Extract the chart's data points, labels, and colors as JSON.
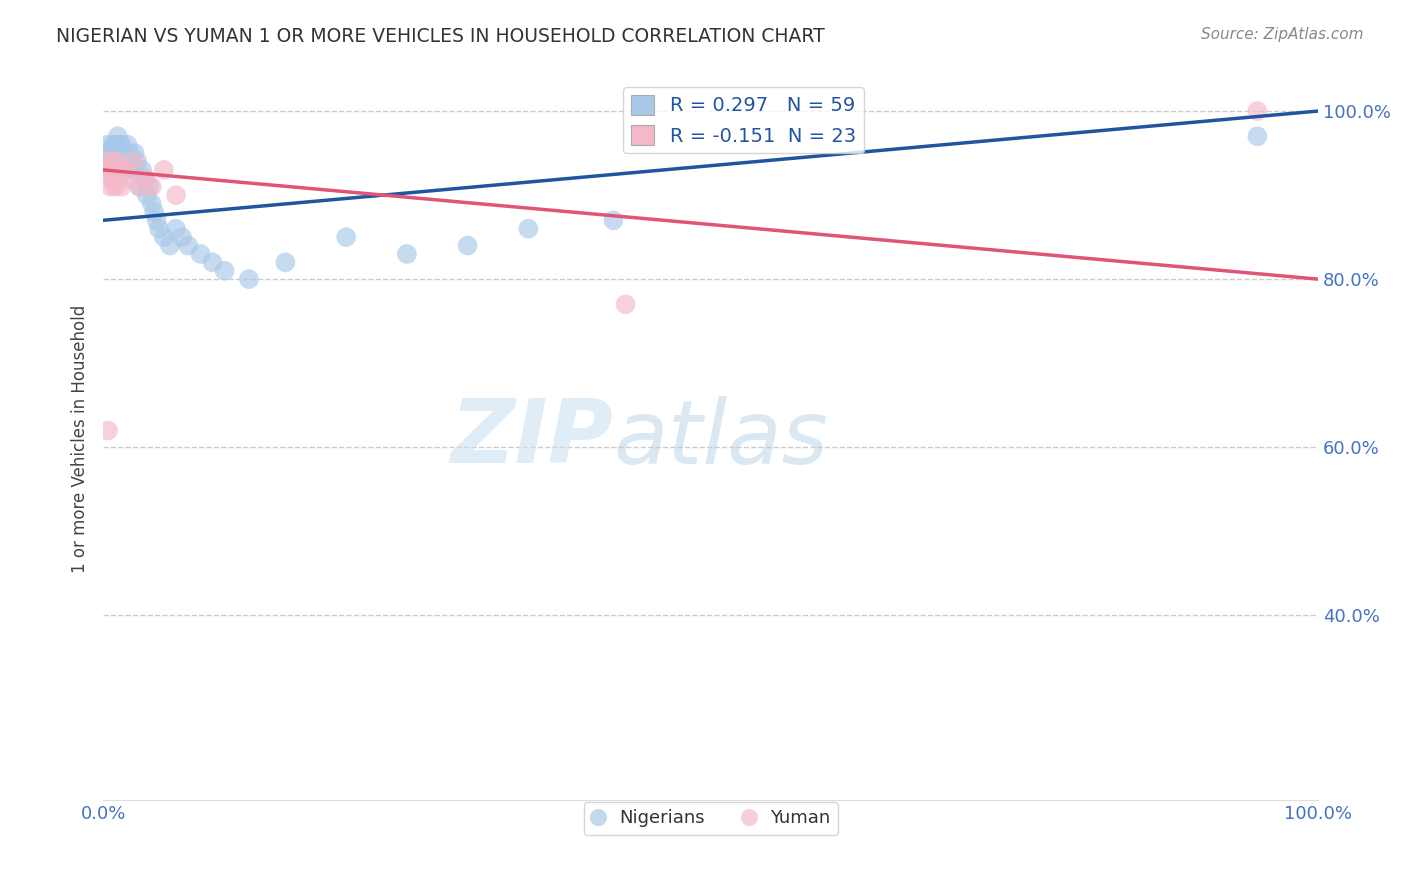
{
  "title": "NIGERIAN VS YUMAN 1 OR MORE VEHICLES IN HOUSEHOLD CORRELATION CHART",
  "source_text": "Source: ZipAtlas.com",
  "ylabel": "1 or more Vehicles in Household",
  "nigerian_R": 0.297,
  "nigerian_N": 59,
  "yuman_R": -0.151,
  "yuman_N": 23,
  "nigerian_color": "#a8c8e8",
  "yuman_color": "#f4b8c8",
  "nigerian_line_color": "#2155a0",
  "yuman_line_color": "#e05575",
  "nigerian_x": [
    0.002,
    0.003,
    0.004,
    0.005,
    0.006,
    0.007,
    0.008,
    0.008,
    0.009,
    0.009,
    0.01,
    0.01,
    0.011,
    0.011,
    0.012,
    0.012,
    0.013,
    0.013,
    0.014,
    0.014,
    0.015,
    0.015,
    0.016,
    0.016,
    0.017,
    0.018,
    0.019,
    0.02,
    0.021,
    0.022,
    0.024,
    0.025,
    0.026,
    0.028,
    0.03,
    0.032,
    0.034,
    0.036,
    0.038,
    0.04,
    0.042,
    0.044,
    0.046,
    0.05,
    0.055,
    0.06,
    0.065,
    0.07,
    0.08,
    0.09,
    0.1,
    0.12,
    0.15,
    0.2,
    0.25,
    0.3,
    0.35,
    0.42,
    0.95
  ],
  "nigerian_y": [
    0.94,
    0.96,
    0.95,
    0.93,
    0.94,
    0.95,
    0.96,
    0.94,
    0.95,
    0.93,
    0.96,
    0.95,
    0.94,
    0.96,
    0.95,
    0.97,
    0.93,
    0.95,
    0.96,
    0.94,
    0.95,
    0.96,
    0.94,
    0.95,
    0.93,
    0.95,
    0.94,
    0.96,
    0.93,
    0.95,
    0.94,
    0.93,
    0.95,
    0.94,
    0.91,
    0.93,
    0.92,
    0.9,
    0.91,
    0.89,
    0.88,
    0.87,
    0.86,
    0.85,
    0.84,
    0.86,
    0.85,
    0.84,
    0.83,
    0.82,
    0.81,
    0.8,
    0.82,
    0.85,
    0.83,
    0.84,
    0.86,
    0.87,
    0.97
  ],
  "yuman_x": [
    0.003,
    0.004,
    0.005,
    0.006,
    0.007,
    0.008,
    0.009,
    0.01,
    0.011,
    0.012,
    0.013,
    0.015,
    0.017,
    0.02,
    0.025,
    0.03,
    0.035,
    0.04,
    0.05,
    0.06,
    0.004,
    0.43,
    0.95
  ],
  "yuman_y": [
    0.93,
    0.94,
    0.92,
    0.91,
    0.93,
    0.94,
    0.92,
    0.91,
    0.93,
    0.94,
    0.92,
    0.91,
    0.93,
    0.92,
    0.94,
    0.91,
    0.92,
    0.91,
    0.93,
    0.9,
    0.62,
    0.77,
    1.0
  ],
  "nigerian_trendline": [
    0.0,
    1.0,
    0.87,
    1.0
  ],
  "yuman_trendline": [
    0.0,
    1.0,
    0.93,
    0.8
  ],
  "xlim": [
    0.0,
    1.0
  ],
  "ylim": [
    0.18,
    1.04
  ],
  "yticks": [
    0.4,
    0.6,
    0.8,
    1.0
  ],
  "ytick_labels": [
    "40.0%",
    "60.0%",
    "80.0%",
    "100.0%"
  ],
  "watermark_zip": "ZIP",
  "watermark_atlas": "atlas",
  "background_color": "#ffffff",
  "grid_color": "#cccccc",
  "title_color": "#333333",
  "tick_color": "#4472c4"
}
